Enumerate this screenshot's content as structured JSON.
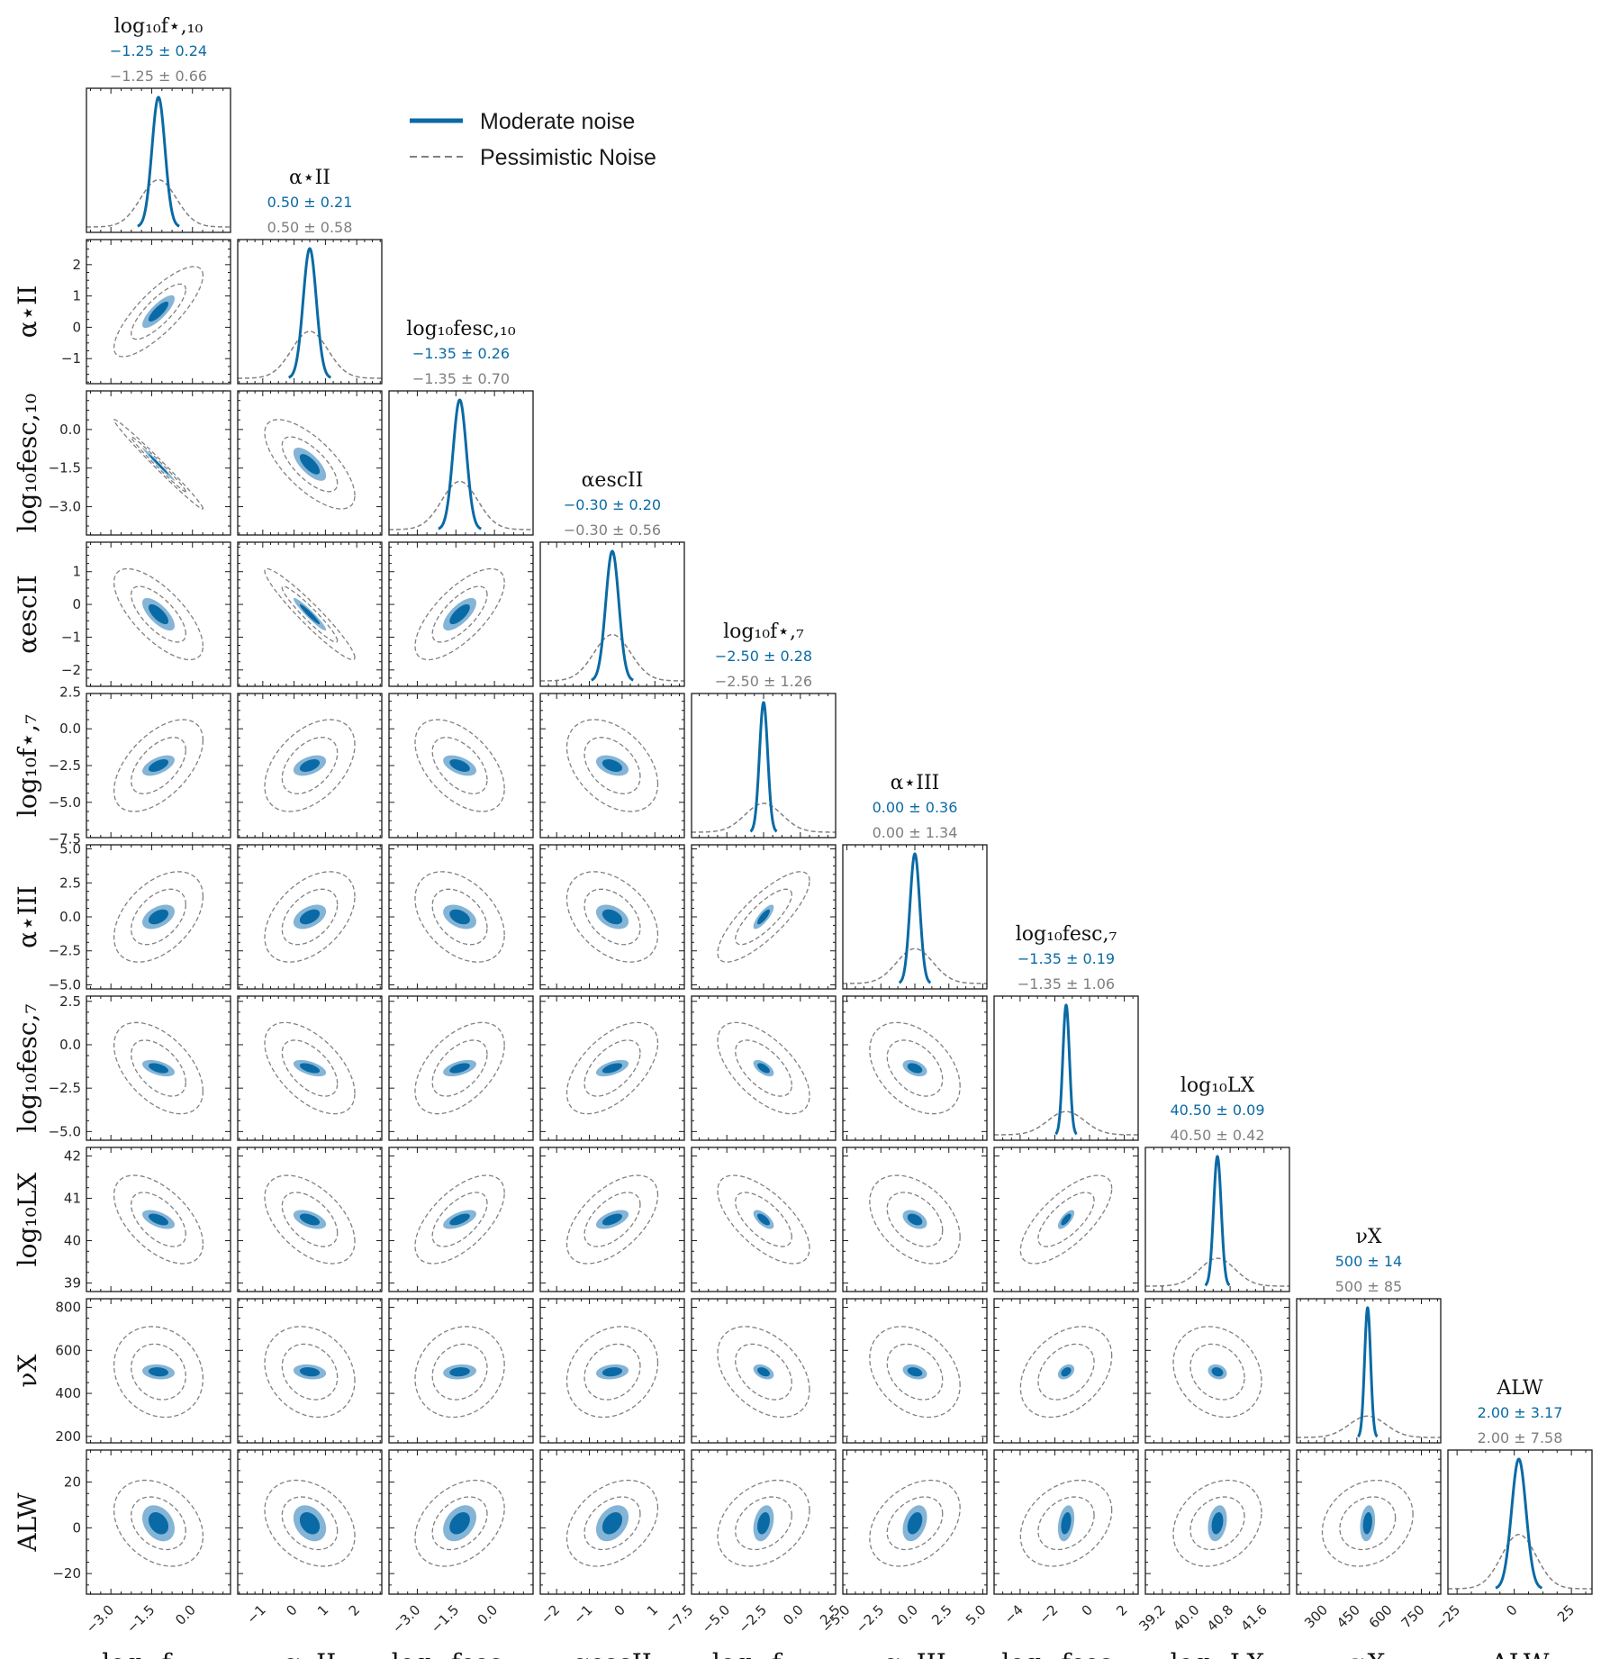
{
  "chart_data": {
    "type": "corner",
    "legend": {
      "position": "top-right",
      "entries": [
        {
          "label": "Moderate noise",
          "style": "solid",
          "color": "#0a6aa5"
        },
        {
          "label": "Pessimistic Noise",
          "style": "dashed",
          "color": "#808080"
        }
      ]
    },
    "colors": {
      "moderate": "#0a6aa5",
      "moderate_light": "#84b4d6",
      "pessimistic": "#808080"
    },
    "params": [
      {
        "label": "log₁₀f⋆,₁₀",
        "title": "log₁₀f⋆,₁₀",
        "mean": -1.25,
        "sigma_mod": 0.24,
        "sigma_pes": 0.66,
        "mod_str": "−1.25 ± 0.24",
        "pes_str": "−1.25 ± 0.66",
        "range": [
          -3.9,
          1.4
        ],
        "ticks": [
          -3.0,
          -1.5,
          0.0
        ],
        "tick_labels": [
          "−3.0",
          "−1.5",
          "0.0"
        ]
      },
      {
        "label": "α⋆II",
        "title": "α⋆II",
        "mean": 0.5,
        "sigma_mod": 0.21,
        "sigma_pes": 0.58,
        "mod_str": "0.50 ± 0.21",
        "pes_str": "0.50 ± 0.58",
        "range": [
          -1.8,
          2.8
        ],
        "ticks": [
          -1,
          0,
          1,
          2
        ],
        "tick_labels": [
          "−1",
          "0",
          "1",
          "2"
        ]
      },
      {
        "label": "log₁₀fesc,₁₀",
        "title": "log₁₀fesc,₁₀",
        "mean": -1.35,
        "sigma_mod": 0.26,
        "sigma_pes": 0.7,
        "mod_str": "−1.35 ± 0.26",
        "pes_str": "−1.35 ± 0.70",
        "range": [
          -4.1,
          1.5
        ],
        "ticks": [
          -3.0,
          -1.5,
          0.0
        ],
        "tick_labels": [
          "−3.0",
          "−1.5",
          "0.0"
        ]
      },
      {
        "label": "αescII",
        "title": "αescII",
        "mean": -0.3,
        "sigma_mod": 0.2,
        "sigma_pes": 0.56,
        "mod_str": "−0.30 ± 0.20",
        "pes_str": "−0.30 ± 0.56",
        "range": [
          -2.5,
          1.9
        ],
        "ticks": [
          -2,
          -1,
          0,
          1
        ],
        "tick_labels": [
          "−2",
          "−1",
          "0",
          "1"
        ]
      },
      {
        "label": "log₁₀f⋆,₇",
        "title": "log₁₀f⋆,₇",
        "mean": -2.5,
        "sigma_mod": 0.28,
        "sigma_pes": 1.26,
        "mod_str": "−2.50 ± 0.28",
        "pes_str": "−2.50 ± 1.26",
        "range": [
          -7.4,
          2.4
        ],
        "ticks": [
          -7.5,
          -5.0,
          -2.5,
          0.0,
          2.5
        ],
        "tick_labels": [
          "−7.5",
          "−5.0",
          "−2.5",
          "0.0",
          "2.5"
        ]
      },
      {
        "label": "α⋆III",
        "title": "α⋆III",
        "mean": 0.0,
        "sigma_mod": 0.36,
        "sigma_pes": 1.34,
        "mod_str": "0.00 ± 0.36",
        "pes_str": "0.00 ± 1.34",
        "range": [
          -5.3,
          5.3
        ],
        "ticks": [
          -5.0,
          -2.5,
          0.0,
          2.5,
          5.0
        ],
        "tick_labels": [
          "−5.0",
          "−2.5",
          "0.0",
          "2.5",
          "5.0"
        ]
      },
      {
        "label": "log₁₀fesc,₇",
        "title": "log₁₀fesc,₇",
        "mean": -1.35,
        "sigma_mod": 0.19,
        "sigma_pes": 1.06,
        "mod_str": "−1.35 ± 0.19",
        "pes_str": "−1.35 ± 1.06",
        "range": [
          -5.5,
          2.8
        ],
        "ticks": [
          -4,
          -2,
          0,
          2
        ],
        "tick_labels": [
          "−4",
          "−2",
          "0",
          "2"
        ],
        "yticks": [
          -5.0,
          -2.5,
          0.0,
          2.5
        ],
        "ytick_labels": [
          "−5.0",
          "−2.5",
          "0.0",
          "2.5"
        ]
      },
      {
        "label": "log₁₀LX",
        "title": "log₁₀LX",
        "mean": 40.5,
        "sigma_mod": 0.09,
        "sigma_pes": 0.42,
        "mod_str": "40.50 ± 0.09",
        "pes_str": "40.50 ± 0.42",
        "range": [
          38.8,
          42.2
        ],
        "ticks": [
          39.2,
          40.0,
          40.8,
          41.6
        ],
        "tick_labels": [
          "39.2",
          "40.0",
          "40.8",
          "41.6"
        ],
        "yticks": [
          39,
          40,
          41,
          42
        ],
        "ytick_labels": [
          "39",
          "40",
          "41",
          "42"
        ]
      },
      {
        "label": "νX",
        "title": "νX",
        "mean": 500,
        "sigma_mod": 14,
        "sigma_pes": 85,
        "mod_str": "500 ± 14",
        "pes_str": "500 ± 85",
        "range": [
          170,
          840
        ],
        "ticks": [
          300,
          450,
          600,
          750
        ],
        "tick_labels": [
          "300",
          "450",
          "600",
          "750"
        ],
        "yticks": [
          200,
          400,
          600,
          800
        ],
        "ytick_labels": [
          "200",
          "400",
          "600",
          "800"
        ]
      },
      {
        "label": "ALW",
        "title": "ALW",
        "mean": 2.0,
        "sigma_mod": 3.17,
        "sigma_pes": 7.58,
        "mod_str": "2.00 ± 3.17",
        "pes_str": "2.00 ± 7.58",
        "range": [
          -29,
          34
        ],
        "ticks": [
          -25,
          0,
          25
        ],
        "tick_labels": [
          "−25",
          "0",
          "25"
        ],
        "yticks": [
          -20,
          0,
          20
        ],
        "ytick_labels": [
          "−20",
          "0",
          "20"
        ]
      }
    ],
    "correlations": [
      [
        1,
        0.8,
        -0.99,
        -0.7,
        0.55,
        0.45,
        -0.5,
        -0.55,
        -0.15,
        -0.3
      ],
      [
        0.8,
        1,
        -0.7,
        -0.95,
        0.45,
        0.45,
        -0.55,
        -0.5,
        -0.2,
        -0.3
      ],
      [
        -0.99,
        -0.7,
        1,
        0.7,
        -0.5,
        -0.4,
        0.5,
        0.6,
        0.15,
        0.35
      ],
      [
        -0.7,
        -0.95,
        0.7,
        1,
        -0.4,
        -0.4,
        0.55,
        0.55,
        0.2,
        0.35
      ],
      [
        0.55,
        0.45,
        -0.5,
        -0.4,
        1,
        0.8,
        -0.6,
        -0.65,
        -0.4,
        0.3
      ],
      [
        0.45,
        0.45,
        -0.4,
        -0.4,
        0.8,
        1,
        -0.4,
        -0.4,
        -0.3,
        0.35
      ],
      [
        -0.5,
        -0.55,
        0.5,
        0.55,
        -0.6,
        -0.4,
        1,
        0.7,
        0.35,
        0.3
      ],
      [
        -0.55,
        -0.5,
        0.6,
        0.55,
        -0.65,
        -0.4,
        0.7,
        1,
        -0.2,
        0.25
      ],
      [
        -0.15,
        -0.2,
        0.15,
        0.2,
        -0.4,
        -0.3,
        0.35,
        -0.2,
        1,
        0.2
      ],
      [
        -0.3,
        -0.3,
        0.35,
        0.35,
        0.3,
        0.35,
        0.3,
        0.25,
        0.2,
        1
      ]
    ]
  }
}
